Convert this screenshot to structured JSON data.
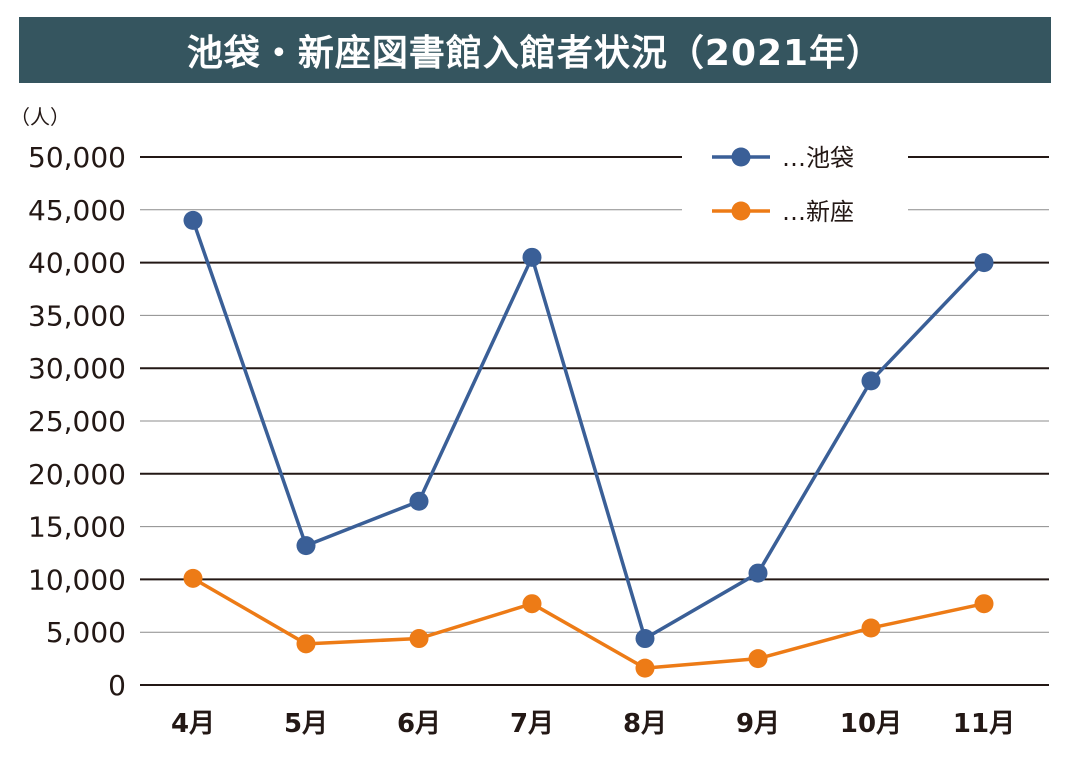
{
  "chart_data": {
    "type": "line",
    "title": "池袋・新座図書館入館者状況（2021年）",
    "ylabel": "（人）",
    "xlabel": "",
    "categories": [
      "4月",
      "5月",
      "6月",
      "7月",
      "8月",
      "9月",
      "10月",
      "11月"
    ],
    "ylim": [
      0,
      50000
    ],
    "yticks": [
      0,
      5000,
      10000,
      15000,
      20000,
      25000,
      30000,
      35000,
      40000,
      45000,
      50000
    ],
    "ytick_labels": [
      "0",
      "5,000",
      "10,000",
      "15,000",
      "20,000",
      "25,000",
      "30,000",
      "35,000",
      "40,000",
      "45,000",
      "50,000"
    ],
    "grid": "horizontal",
    "legend_position": "top-right",
    "series": [
      {
        "name": "…池袋",
        "color": "#3a5f97",
        "values": [
          44000,
          13200,
          17400,
          40500,
          4400,
          10600,
          28800,
          40000
        ]
      },
      {
        "name": "…新座",
        "color": "#ed7b16",
        "values": [
          10100,
          3900,
          4400,
          7700,
          1600,
          2500,
          5400,
          7700
        ]
      }
    ]
  },
  "colors": {
    "title_bg": "#35555f",
    "title_text": "#ffffff",
    "grid_dark": "#231815",
    "grid_light": "#8c8c8c"
  }
}
